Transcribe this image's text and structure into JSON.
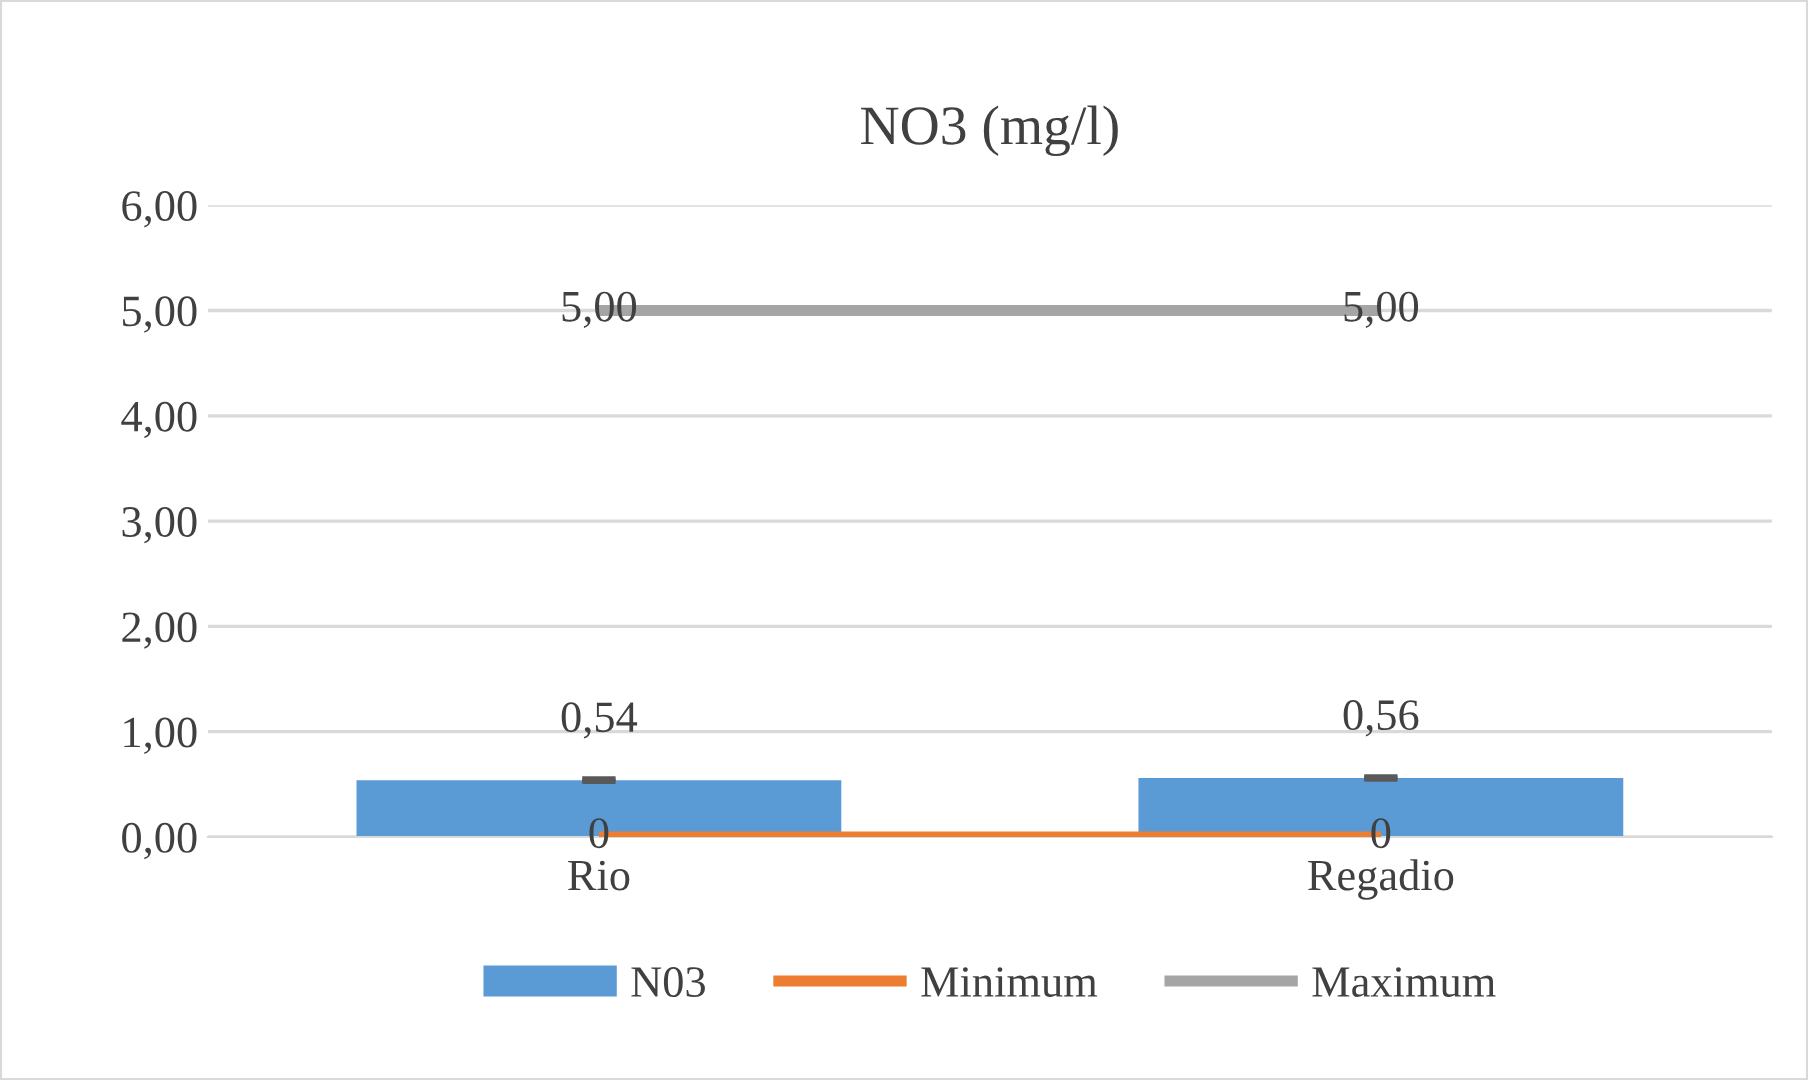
{
  "chart_data": {
    "type": "bar",
    "title": "NO3 (mg/l)",
    "categories": [
      "Rio",
      "Regadio"
    ],
    "series": [
      {
        "name": "N03",
        "color": "#5b9bd5",
        "values": [
          0.54,
          0.56
        ],
        "errors": [
          0.01,
          0.01
        ],
        "value_labels": [
          "0,54",
          "0,56"
        ]
      },
      {
        "name": "Minimum",
        "type": "line",
        "color": "#ed7d31",
        "values": [
          0,
          0
        ],
        "value_labels": [
          "0",
          "0"
        ]
      },
      {
        "name": "Maximum",
        "type": "line",
        "color": "#a5a5a5",
        "values": [
          5,
          5
        ],
        "value_labels": [
          "5,00",
          "5,00"
        ]
      }
    ],
    "ylim": [
      0,
      6
    ],
    "yticks": [
      {
        "value": 0,
        "label": "0,00"
      },
      {
        "value": 1,
        "label": "1,00"
      },
      {
        "value": 2,
        "label": "2,00"
      },
      {
        "value": 3,
        "label": "3,00"
      },
      {
        "value": 4,
        "label": "4,00"
      },
      {
        "value": 5,
        "label": "5,00"
      },
      {
        "value": 6,
        "label": "6,00"
      }
    ],
    "grid": "y",
    "legend": "bottom"
  }
}
